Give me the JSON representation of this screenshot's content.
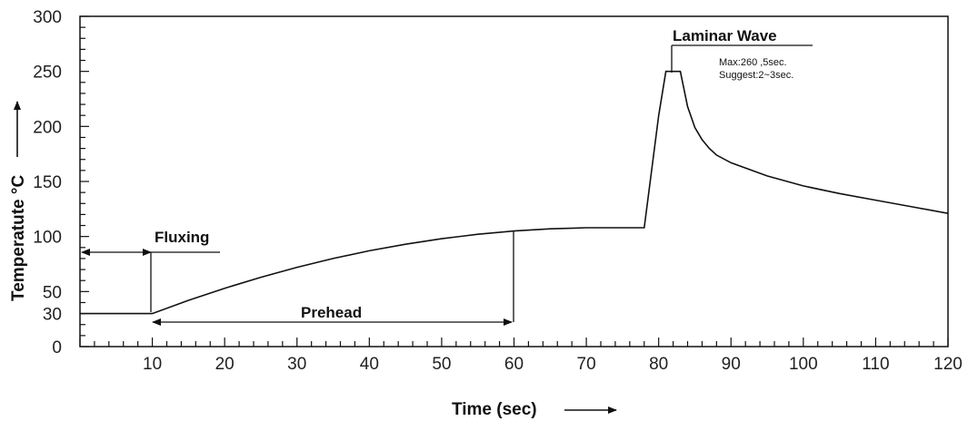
{
  "chart_data": {
    "type": "line",
    "title": "",
    "xlabel": "Time  (sec)",
    "ylabel": "Temperatute °C",
    "xlim": [
      0,
      120
    ],
    "ylim": [
      0,
      300
    ],
    "x_ticks": [
      "10",
      "20",
      "30",
      "40",
      "50",
      "60",
      "70",
      "80",
      "90",
      "100",
      "110",
      "120"
    ],
    "y_ticks": [
      "0",
      "30",
      "50",
      "100",
      "150",
      "200",
      "250",
      "300"
    ],
    "grid": false,
    "series": [
      {
        "x": [
          0,
          10,
          15,
          20,
          25,
          30,
          35,
          40,
          45,
          50,
          55,
          60,
          65,
          70,
          75,
          78,
          80,
          81,
          83,
          84,
          85,
          86,
          87,
          88,
          90,
          95,
          100,
          105,
          110,
          115,
          120
        ],
        "y": [
          30,
          30,
          42,
          53,
          63,
          72,
          80,
          87,
          93,
          98,
          102,
          105,
          107,
          108,
          108,
          108,
          210,
          250,
          250,
          218,
          199,
          188,
          180,
          174,
          167,
          155,
          146,
          139,
          133,
          127,
          121
        ]
      }
    ],
    "annotations": [
      {
        "label": "Fluxing",
        "x_start": 0,
        "x_end": 10
      },
      {
        "label": "Prehead",
        "x_start": 10,
        "x_end": 60
      },
      {
        "label": "Laminar  Wave",
        "notes": [
          "Max:260 ,5sec.",
          "Suggest:2~3sec."
        ]
      }
    ]
  }
}
